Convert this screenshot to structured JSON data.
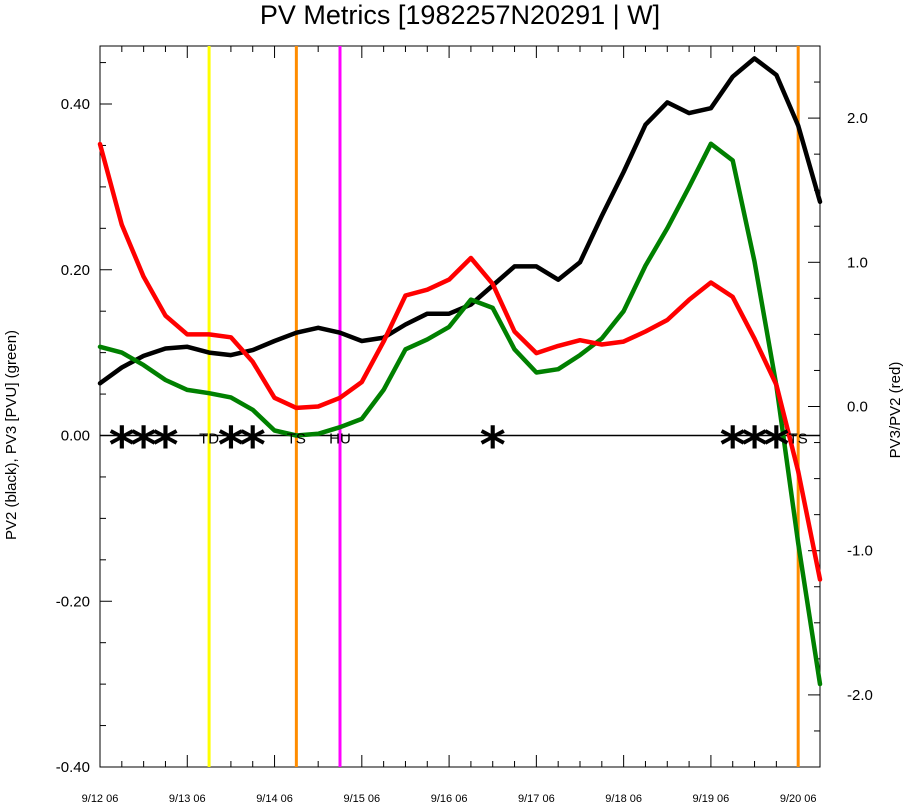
{
  "chart_data": {
    "type": "line",
    "title": "PV Metrics [1982257N20291 | W]",
    "ylabel_left": "PV2 (black), PV3 [PVU] (green)",
    "ylabel_right": "PV3/PV2 (red)",
    "xlim": [
      0,
      8.25
    ],
    "ylim_left": [
      -0.4,
      0.47
    ],
    "ylim_right": [
      -2.5,
      2.5
    ],
    "x_ticks": [
      {
        "x": 0,
        "label": "9/12 06"
      },
      {
        "x": 1,
        "label": "9/13 06"
      },
      {
        "x": 2,
        "label": "9/14 06"
      },
      {
        "x": 3,
        "label": "9/15 06"
      },
      {
        "x": 4,
        "label": "9/16 06"
      },
      {
        "x": 5,
        "label": "9/17 06"
      },
      {
        "x": 6,
        "label": "9/18 06"
      },
      {
        "x": 7,
        "label": "9/19 06"
      },
      {
        "x": 8,
        "label": "9/20 06"
      }
    ],
    "y_ticks_left": [
      {
        "v": 0.4,
        "label": "0.40"
      },
      {
        "v": 0.2,
        "label": "0.20"
      },
      {
        "v": 0.0,
        "label": "0.00"
      },
      {
        "v": -0.2,
        "label": "-0.20"
      },
      {
        "v": -0.4,
        "label": "-0.40"
      }
    ],
    "y_ticks_right": [
      {
        "v": 2.0,
        "label": "2.0"
      },
      {
        "v": 1.0,
        "label": "1.0"
      },
      {
        "v": 0.0,
        "label": "0.0"
      },
      {
        "v": -1.0,
        "label": "-1.0"
      },
      {
        "v": -2.0,
        "label": "-2.0"
      }
    ],
    "series": [
      {
        "color": "#000000",
        "axis": "left",
        "x": [
          0,
          0.25,
          0.5,
          0.75,
          1,
          1.25,
          1.5,
          1.75,
          2,
          2.25,
          2.5,
          2.75,
          3,
          3.25,
          3.5,
          3.75,
          4,
          4.25,
          4.5,
          4.75,
          5,
          5.25,
          5.5,
          5.75,
          6,
          6.25,
          6.5,
          6.75,
          7,
          7.25,
          7.5,
          7.75,
          8,
          8.25
        ],
        "values": [
          0.063,
          0.082,
          0.096,
          0.105,
          0.107,
          0.1,
          0.097,
          0.103,
          0.114,
          0.124,
          0.13,
          0.124,
          0.114,
          0.118,
          0.134,
          0.147,
          0.147,
          0.158,
          0.181,
          0.204,
          0.204,
          0.188,
          0.209,
          0.265,
          0.318,
          0.375,
          0.402,
          0.389,
          0.395,
          0.433,
          0.455,
          0.435,
          0.374,
          0.282
        ]
      },
      {
        "color": "#008000",
        "axis": "left",
        "x": [
          0,
          0.25,
          0.5,
          0.75,
          1,
          1.25,
          1.5,
          1.75,
          2,
          2.25,
          2.5,
          2.75,
          3,
          3.25,
          3.5,
          3.75,
          4,
          4.25,
          4.5,
          4.75,
          5,
          5.25,
          5.5,
          5.75,
          6,
          6.25,
          6.5,
          6.75,
          7,
          7.25,
          7.5,
          7.75,
          8,
          8.25
        ],
        "values": [
          0.107,
          0.1,
          0.085,
          0.067,
          0.055,
          0.051,
          0.046,
          0.031,
          0.006,
          0.0,
          0.002,
          0.01,
          0.02,
          0.055,
          0.104,
          0.116,
          0.131,
          0.164,
          0.154,
          0.104,
          0.076,
          0.08,
          0.097,
          0.117,
          0.15,
          0.205,
          0.25,
          0.3,
          0.352,
          0.332,
          0.21,
          0.06,
          -0.13,
          -0.3
        ]
      },
      {
        "color": "#ff0000",
        "axis": "right",
        "x": [
          0,
          0.25,
          0.5,
          0.75,
          1,
          1.25,
          1.5,
          1.75,
          2,
          2.25,
          2.5,
          2.75,
          3,
          3.25,
          3.5,
          3.75,
          4,
          4.25,
          4.5,
          4.75,
          5,
          5.25,
          5.5,
          5.75,
          6,
          6.25,
          6.5,
          6.75,
          7,
          7.25,
          7.5,
          7.75,
          8,
          8.25
        ],
        "values": [
          1.82,
          1.26,
          0.9,
          0.63,
          0.5,
          0.5,
          0.48,
          0.31,
          0.06,
          -0.01,
          0.0,
          0.06,
          0.17,
          0.45,
          0.77,
          0.81,
          0.88,
          1.03,
          0.85,
          0.52,
          0.37,
          0.42,
          0.46,
          0.43,
          0.45,
          0.52,
          0.6,
          0.74,
          0.86,
          0.76,
          0.47,
          0.15,
          -0.45,
          -1.2
        ]
      }
    ],
    "vertical_lines": [
      {
        "x": 1.25,
        "color": "#ffff00"
      },
      {
        "x": 2.25,
        "color": "#ff8c00"
      },
      {
        "x": 2.75,
        "color": "#ff00ff"
      },
      {
        "x": 8.0,
        "color": "#ff8c00"
      }
    ],
    "markers": [
      {
        "x": 0.25,
        "symbol": "*"
      },
      {
        "x": 0.5,
        "symbol": "*"
      },
      {
        "x": 0.75,
        "symbol": "*"
      },
      {
        "x": 1.5,
        "symbol": "*"
      },
      {
        "x": 1.75,
        "symbol": "*"
      },
      {
        "x": 4.5,
        "symbol": "*"
      },
      {
        "x": 7.25,
        "symbol": "*"
      },
      {
        "x": 7.5,
        "symbol": "*"
      },
      {
        "x": 7.75,
        "symbol": "*"
      }
    ],
    "annotations": [
      {
        "x": 1.25,
        "text": "TD"
      },
      {
        "x": 2.25,
        "text": "TS"
      },
      {
        "x": 2.75,
        "text": "HU"
      },
      {
        "x": 8.0,
        "text": "TS"
      }
    ]
  }
}
